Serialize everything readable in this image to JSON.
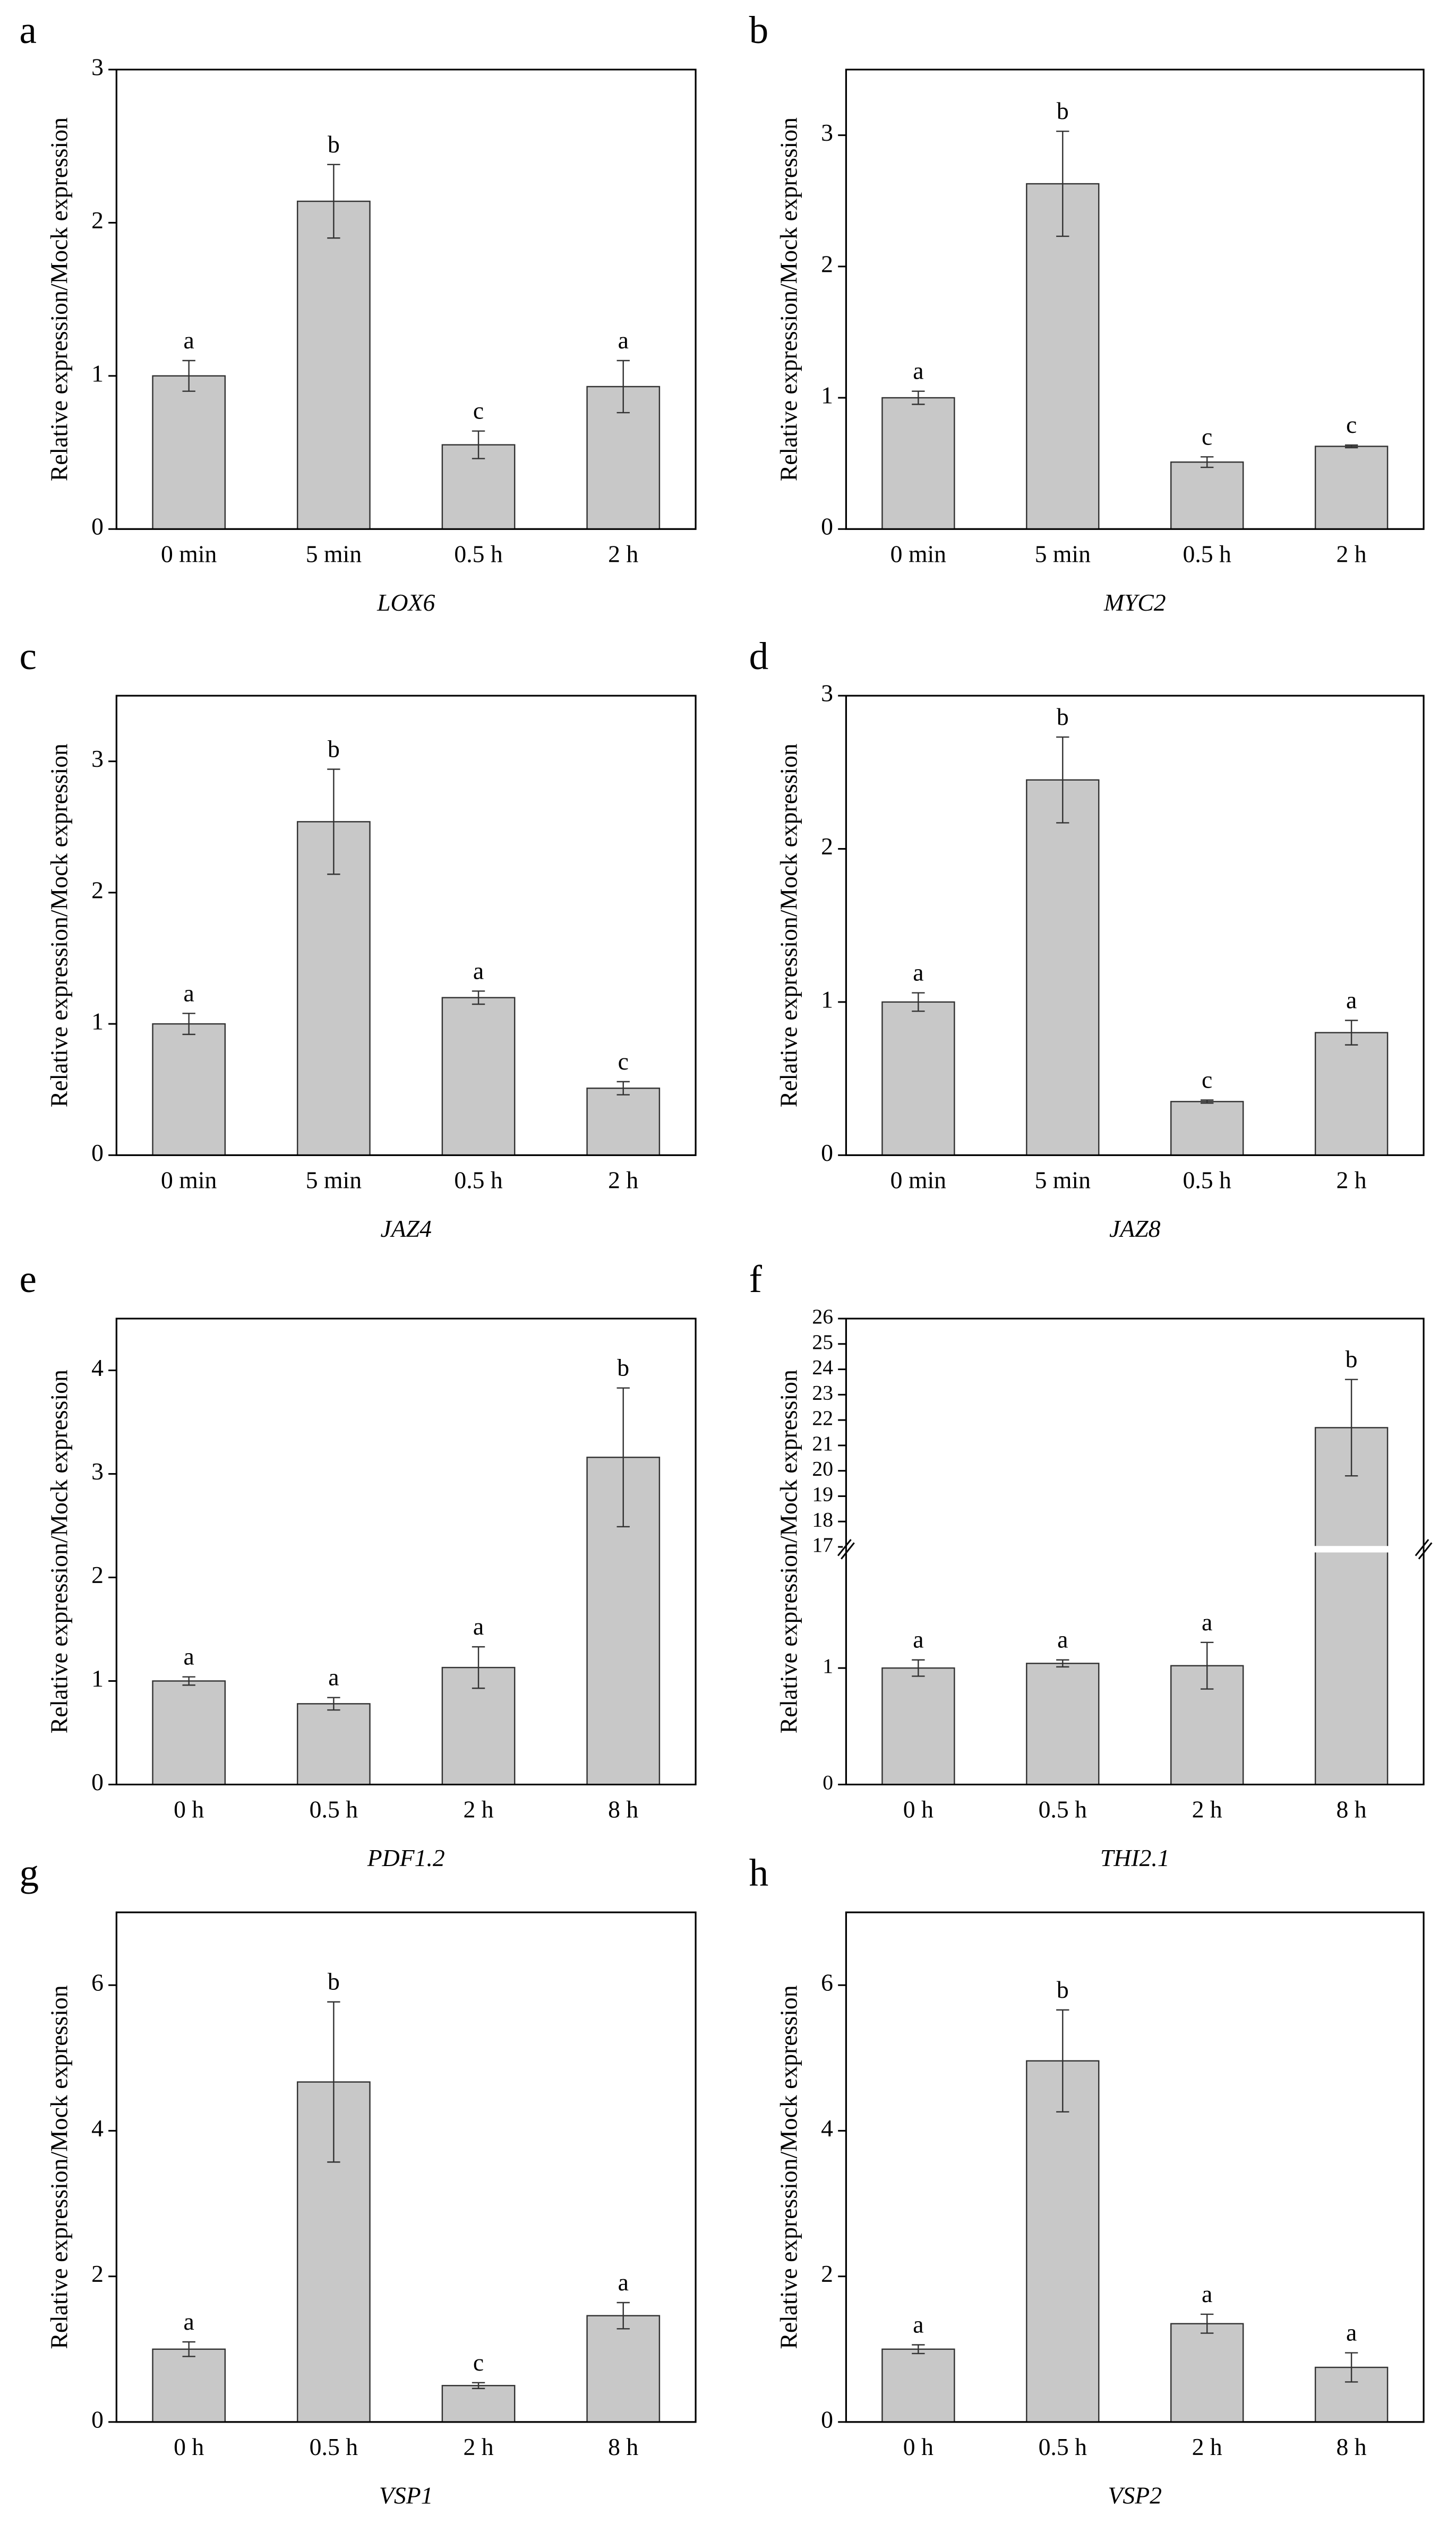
{
  "chart_data": [
    {
      "type": "bar",
      "panel": "a",
      "ylabel": "Relative expression/Mock expression",
      "xlabel": "LOX6",
      "categories": [
        "0 min",
        "5 min",
        "0.5 h",
        "2 h"
      ],
      "values": [
        1.0,
        2.14,
        0.55,
        0.93
      ],
      "errors": [
        0.1,
        0.24,
        0.09,
        0.17
      ],
      "annotations": [
        "a",
        "b",
        "c",
        "a"
      ],
      "color": "#c8c8c8",
      "ylim": [
        0,
        3
      ],
      "yticks": [
        0,
        1,
        2,
        3
      ]
    },
    {
      "type": "bar",
      "panel": "b",
      "ylabel": "Relative expression/Mock expression",
      "xlabel": "MYC2",
      "categories": [
        "0 min",
        "5 min",
        "0.5 h",
        "2 h"
      ],
      "values": [
        1.0,
        2.63,
        0.51,
        0.63
      ],
      "errors": [
        0.05,
        0.4,
        0.04,
        0.01
      ],
      "annotations": [
        "a",
        "b",
        "c",
        "c"
      ],
      "color": "#c8c8c8",
      "ylim": [
        0,
        3.5
      ],
      "yticks": [
        0,
        1,
        2,
        3
      ]
    },
    {
      "type": "bar",
      "panel": "c",
      "ylabel": "Relative expression/Mock expression",
      "xlabel": "JAZ4",
      "categories": [
        "0 min",
        "5 min",
        "0.5 h",
        "2 h"
      ],
      "values": [
        1.0,
        2.54,
        1.2,
        0.51
      ],
      "errors": [
        0.08,
        0.4,
        0.05,
        0.05
      ],
      "annotations": [
        "a",
        "b",
        "a",
        "c"
      ],
      "color": "#c8c8c8",
      "ylim": [
        0,
        3.5
      ],
      "yticks": [
        0,
        1,
        2,
        3
      ]
    },
    {
      "type": "bar",
      "panel": "d",
      "ylabel": "Relative expression/Mock expression",
      "xlabel": "JAZ8",
      "categories": [
        "0 min",
        "5 min",
        "0.5 h",
        "2 h"
      ],
      "values": [
        1.0,
        2.45,
        0.35,
        0.8
      ],
      "errors": [
        0.06,
        0.28,
        0.01,
        0.08
      ],
      "annotations": [
        "a",
        "b",
        "c",
        "a"
      ],
      "color": "#c8c8c8",
      "ylim": [
        0,
        3
      ],
      "yticks": [
        0,
        1,
        2,
        3
      ]
    },
    {
      "type": "bar",
      "panel": "e",
      "ylabel": "Relative expression/Mock expression",
      "xlabel": "PDF1.2",
      "categories": [
        "0 h",
        "0.5 h",
        "2 h",
        "8 h"
      ],
      "values": [
        1.0,
        0.78,
        1.13,
        3.16
      ],
      "errors": [
        0.04,
        0.06,
        0.2,
        0.67
      ],
      "annotations": [
        "a",
        "a",
        "a",
        "b"
      ],
      "color": "#c8c8c8",
      "ylim": [
        0,
        4.5
      ],
      "yticks": [
        0,
        1,
        2,
        3,
        4
      ]
    },
    {
      "type": "bar",
      "panel": "f",
      "ylabel": "Relative expression/Mock expression",
      "xlabel": "THI2.1",
      "categories": [
        "0 h",
        "0.5 h",
        "2 h",
        "8 h"
      ],
      "values": [
        1.0,
        1.04,
        1.02,
        21.7
      ],
      "errors": [
        0.07,
        0.03,
        0.2,
        1.9
      ],
      "annotations": [
        "a",
        "a",
        "a",
        "b"
      ],
      "color": "#c8c8c8",
      "ylim": [
        0,
        26
      ],
      "ybreak": [
        2,
        17
      ],
      "yticks": [
        0,
        1,
        17,
        18,
        19,
        20,
        21,
        22,
        23,
        24,
        25,
        26
      ]
    },
    {
      "type": "bar",
      "panel": "g",
      "ylabel": "Relative expression/Mock expression",
      "xlabel": "VSP1",
      "categories": [
        "0 h",
        "0.5 h",
        "2 h",
        "8 h"
      ],
      "values": [
        1.0,
        4.67,
        0.5,
        1.46
      ],
      "errors": [
        0.1,
        1.1,
        0.04,
        0.18
      ],
      "annotations": [
        "a",
        "b",
        "c",
        "a"
      ],
      "color": "#c8c8c8",
      "ylim": [
        0,
        7
      ],
      "yticks": [
        0,
        2,
        4,
        6
      ]
    },
    {
      "type": "bar",
      "panel": "h",
      "ylabel": "Relative expression/Mock expression",
      "xlabel": "VSP2",
      "categories": [
        "0 h",
        "0.5 h",
        "2 h",
        "8 h"
      ],
      "values": [
        1.0,
        4.96,
        1.35,
        0.75
      ],
      "errors": [
        0.06,
        0.7,
        0.13,
        0.2
      ],
      "annotations": [
        "a",
        "b",
        "a",
        "a"
      ],
      "color": "#c8c8c8",
      "ylim": [
        0,
        7
      ],
      "yticks": [
        0,
        2,
        4,
        6
      ]
    }
  ]
}
